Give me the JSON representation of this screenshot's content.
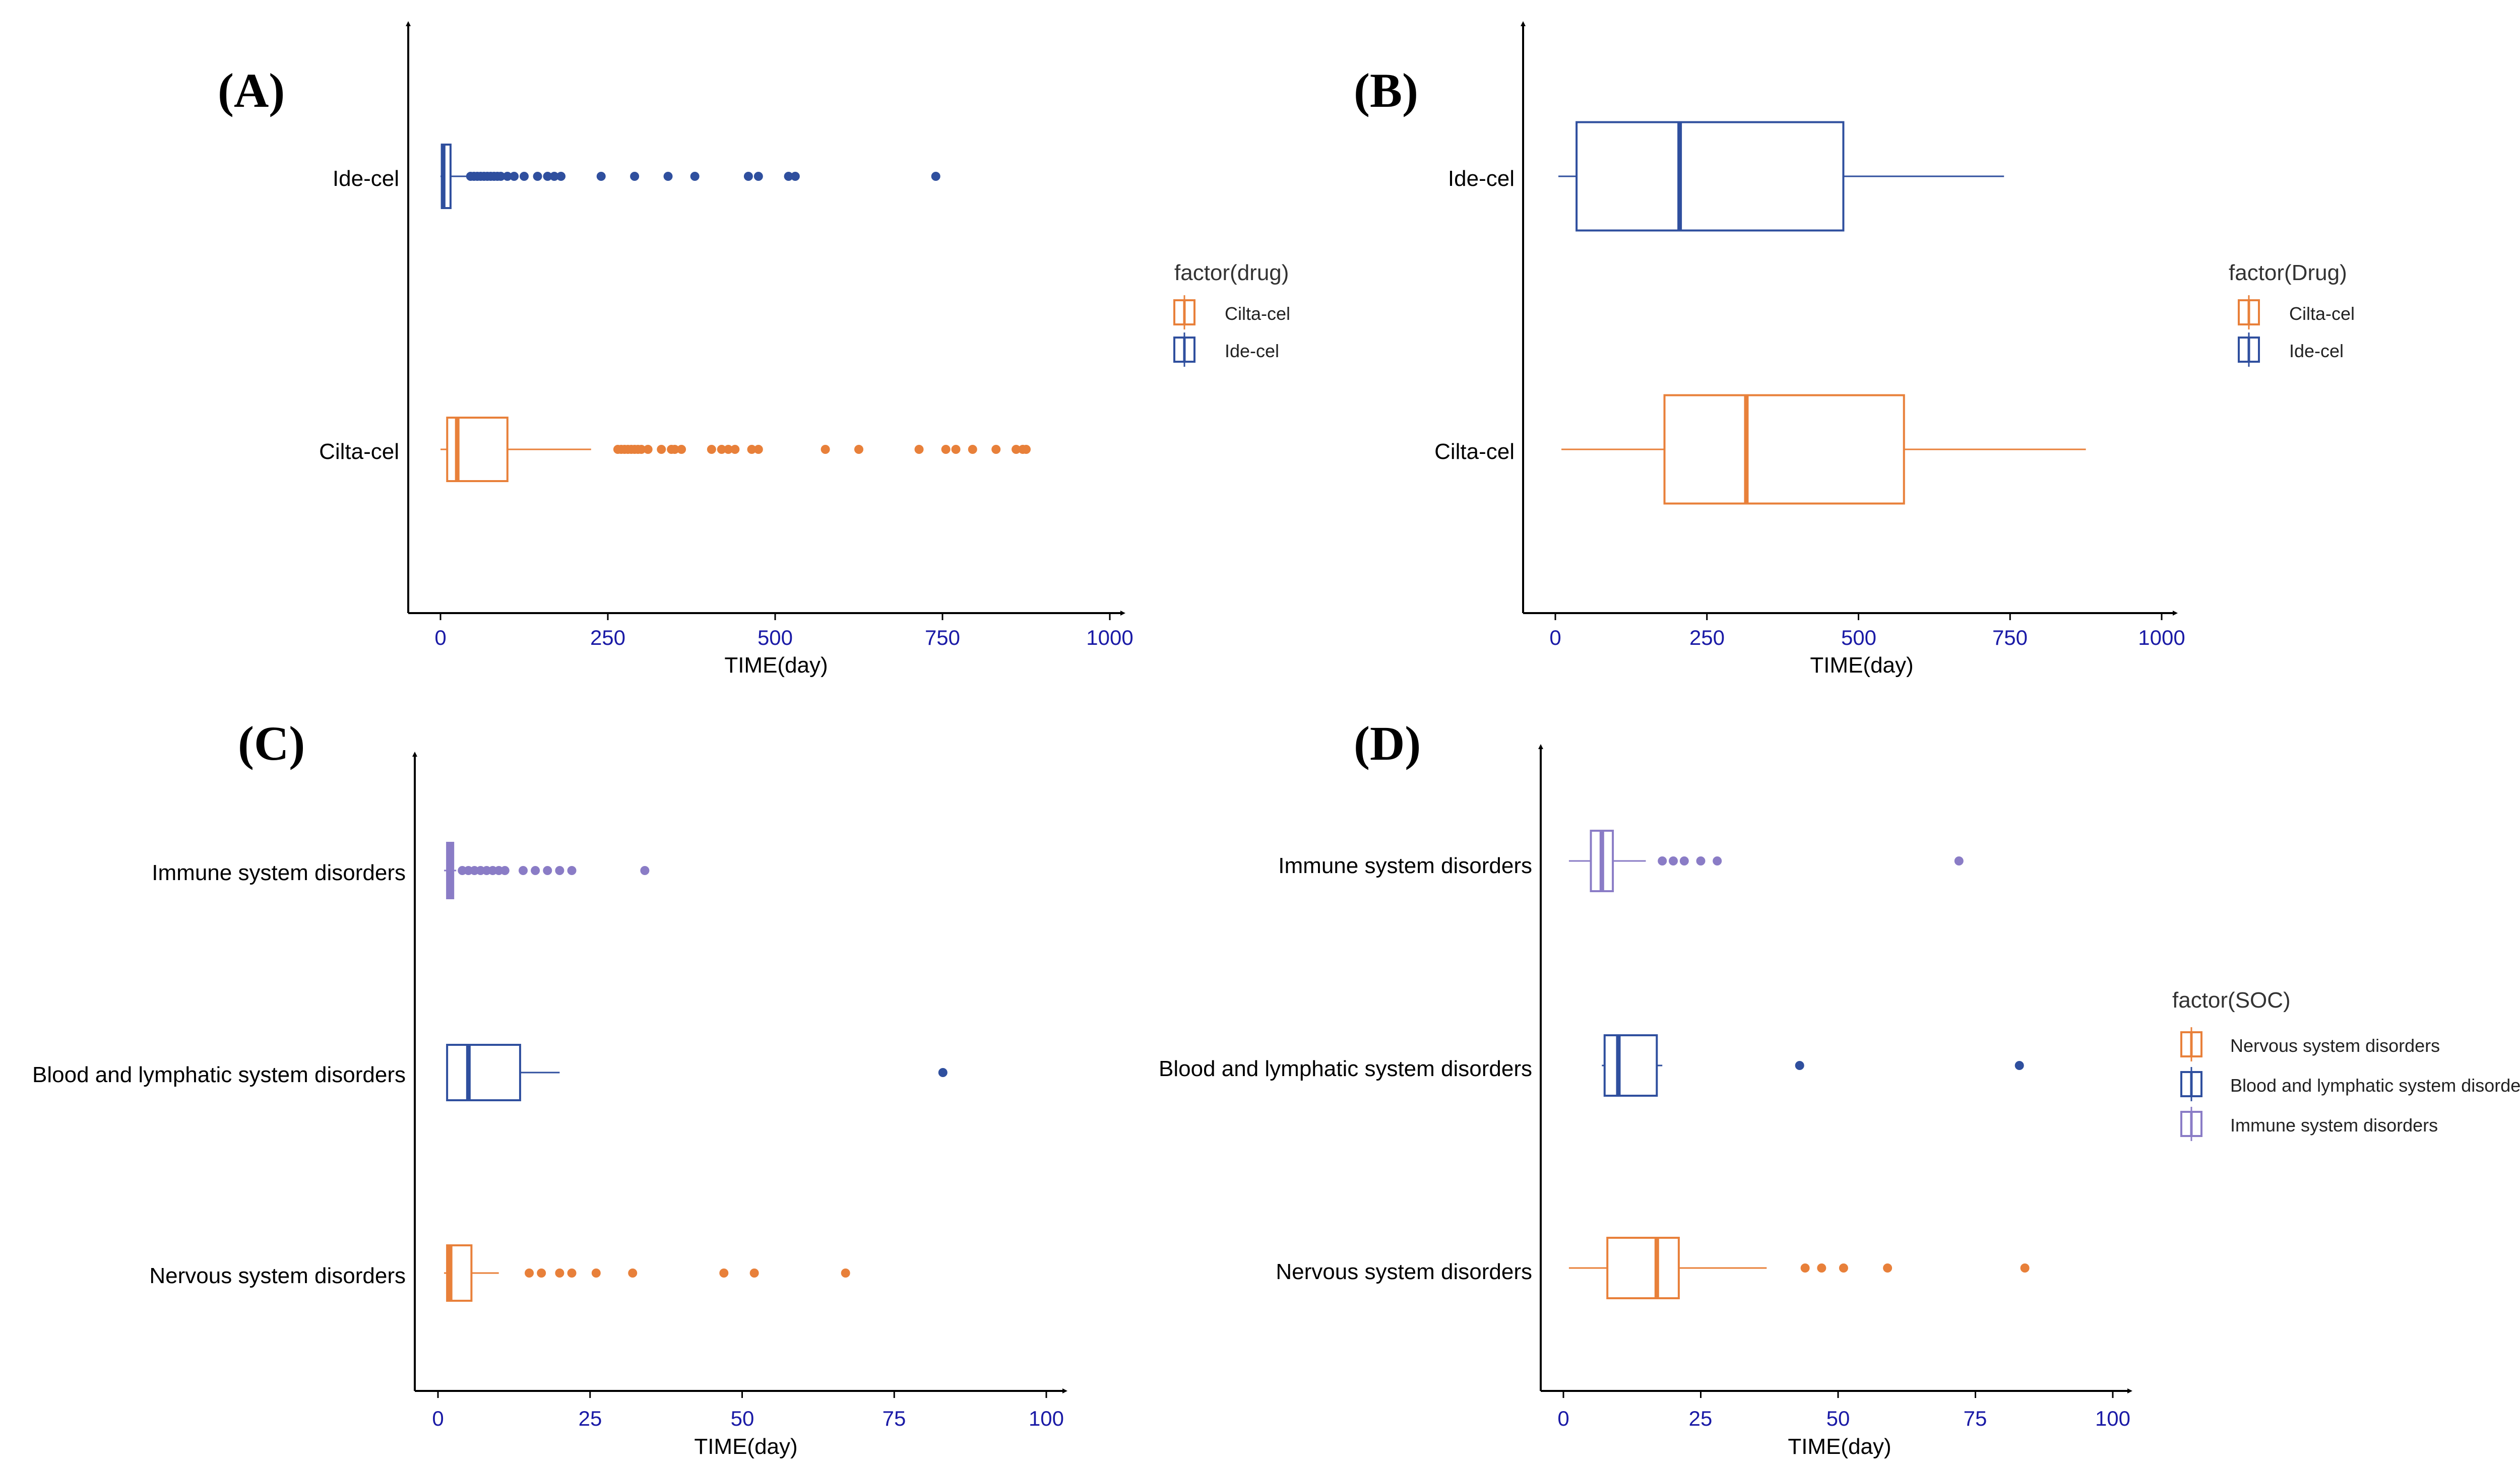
{
  "colors": {
    "orange": "#E8803A",
    "navy": "#2F4F9E",
    "purple": "#8A7CC6",
    "tick_text": "#1a1aa6",
    "axis": "#000000"
  },
  "chart_data": [
    {
      "type": "boxplot",
      "panel_label": "(A)",
      "xlabel": "TIME(day)",
      "xlim": [
        0,
        1000
      ],
      "xticks": [
        "0",
        "250",
        "500",
        "750",
        "1000"
      ],
      "xtick_values": [
        0,
        250,
        500,
        750,
        1000
      ],
      "legend": {
        "title": "factor(drug)",
        "position": "right",
        "entries": [
          {
            "label": "Cilta-cel",
            "color": "orange"
          },
          {
            "label": "Ide-cel",
            "color": "navy"
          }
        ]
      },
      "series": [
        {
          "name": "Ide-cel",
          "color": "navy",
          "min": 0,
          "q1": 2,
          "median": 4,
          "q3": 15,
          "max": 40,
          "outliers": [
            45,
            50,
            55,
            60,
            65,
            70,
            75,
            80,
            85,
            90,
            100,
            110,
            125,
            145,
            160,
            170,
            180,
            240,
            290,
            340,
            380,
            460,
            475,
            520,
            530,
            740
          ]
        },
        {
          "name": "Cilta-cel",
          "color": "orange",
          "min": 0,
          "q1": 10,
          "median": 25,
          "q3": 100,
          "max": 225,
          "outliers": [
            265,
            270,
            275,
            280,
            285,
            290,
            295,
            300,
            310,
            330,
            345,
            350,
            360,
            405,
            420,
            430,
            440,
            465,
            475,
            575,
            625,
            715,
            755,
            770,
            795,
            830,
            860,
            870,
            875
          ]
        }
      ]
    },
    {
      "type": "boxplot",
      "panel_label": "(B)",
      "xlabel": "TIME(day)",
      "xlim": [
        0,
        1000
      ],
      "xticks": [
        "0",
        "250",
        "500",
        "750",
        "1000"
      ],
      "xtick_values": [
        0,
        250,
        500,
        750,
        1000
      ],
      "legend": {
        "title": "factor(Drug)",
        "position": "right",
        "entries": [
          {
            "label": "Cilta-cel",
            "color": "orange"
          },
          {
            "label": "Ide-cel",
            "color": "navy"
          }
        ]
      },
      "series": [
        {
          "name": "Ide-cel",
          "color": "navy",
          "min": 5,
          "q1": 35,
          "median": 205,
          "q3": 475,
          "max": 740,
          "outliers": []
        },
        {
          "name": "Cilta-cel",
          "color": "orange",
          "min": 10,
          "q1": 180,
          "median": 315,
          "q3": 575,
          "max": 875,
          "outliers": []
        }
      ]
    },
    {
      "type": "boxplot",
      "panel_label": "(C)",
      "xlabel": "TIME(day)",
      "xlim": [
        0,
        100
      ],
      "xticks": [
        "0",
        "25",
        "50",
        "75",
        "100"
      ],
      "xtick_values": [
        0,
        25,
        50,
        75,
        100
      ],
      "series": [
        {
          "name": "Immune system disorders",
          "color": "purple",
          "min": 1,
          "q1": 1.5,
          "median": 2,
          "q3": 2.5,
          "max": 3,
          "outliers": [
            4,
            5,
            6,
            7,
            8,
            9,
            10,
            11,
            14,
            16,
            18,
            20,
            22,
            34
          ]
        },
        {
          "name": "Blood and lymphatic system disorders",
          "color": "navy",
          "min": 1.5,
          "q1": 1.5,
          "median": 5,
          "q3": 13.5,
          "max": 20,
          "outliers": [
            83
          ]
        },
        {
          "name": "Nervous system disorders",
          "color": "orange",
          "min": 1,
          "q1": 1.5,
          "median": 2,
          "q3": 5.5,
          "max": 10,
          "outliers": [
            15,
            17,
            20,
            22,
            26,
            32,
            47,
            52,
            67
          ]
        }
      ]
    },
    {
      "type": "boxplot",
      "panel_label": "(D)",
      "xlabel": "TIME(day)",
      "xlim": [
        0,
        100
      ],
      "xticks": [
        "0",
        "25",
        "50",
        "75",
        "100"
      ],
      "xtick_values": [
        0,
        25,
        50,
        75,
        100
      ],
      "legend": {
        "title": "factor(SOC)",
        "position": "right",
        "entries": [
          {
            "label": "Nervous system disorders",
            "color": "orange"
          },
          {
            "label": "Blood and lymphatic system disorders",
            "color": "navy"
          },
          {
            "label": "Immune system disorders",
            "color": "purple"
          }
        ]
      },
      "series": [
        {
          "name": "Immune system disorders",
          "color": "purple",
          "min": 1,
          "q1": 5,
          "median": 7,
          "q3": 9,
          "max": 15,
          "outliers": [
            18,
            20,
            22,
            25,
            28,
            72
          ]
        },
        {
          "name": "Blood and lymphatic system disorders",
          "color": "navy",
          "min": 7,
          "q1": 7.5,
          "median": 10,
          "q3": 17,
          "max": 18,
          "outliers": [
            43,
            83
          ]
        },
        {
          "name": "Nervous system disorders",
          "color": "orange",
          "min": 1,
          "q1": 8,
          "median": 17,
          "q3": 21,
          "max": 37,
          "outliers": [
            44,
            47,
            51,
            59,
            84
          ]
        }
      ]
    }
  ]
}
